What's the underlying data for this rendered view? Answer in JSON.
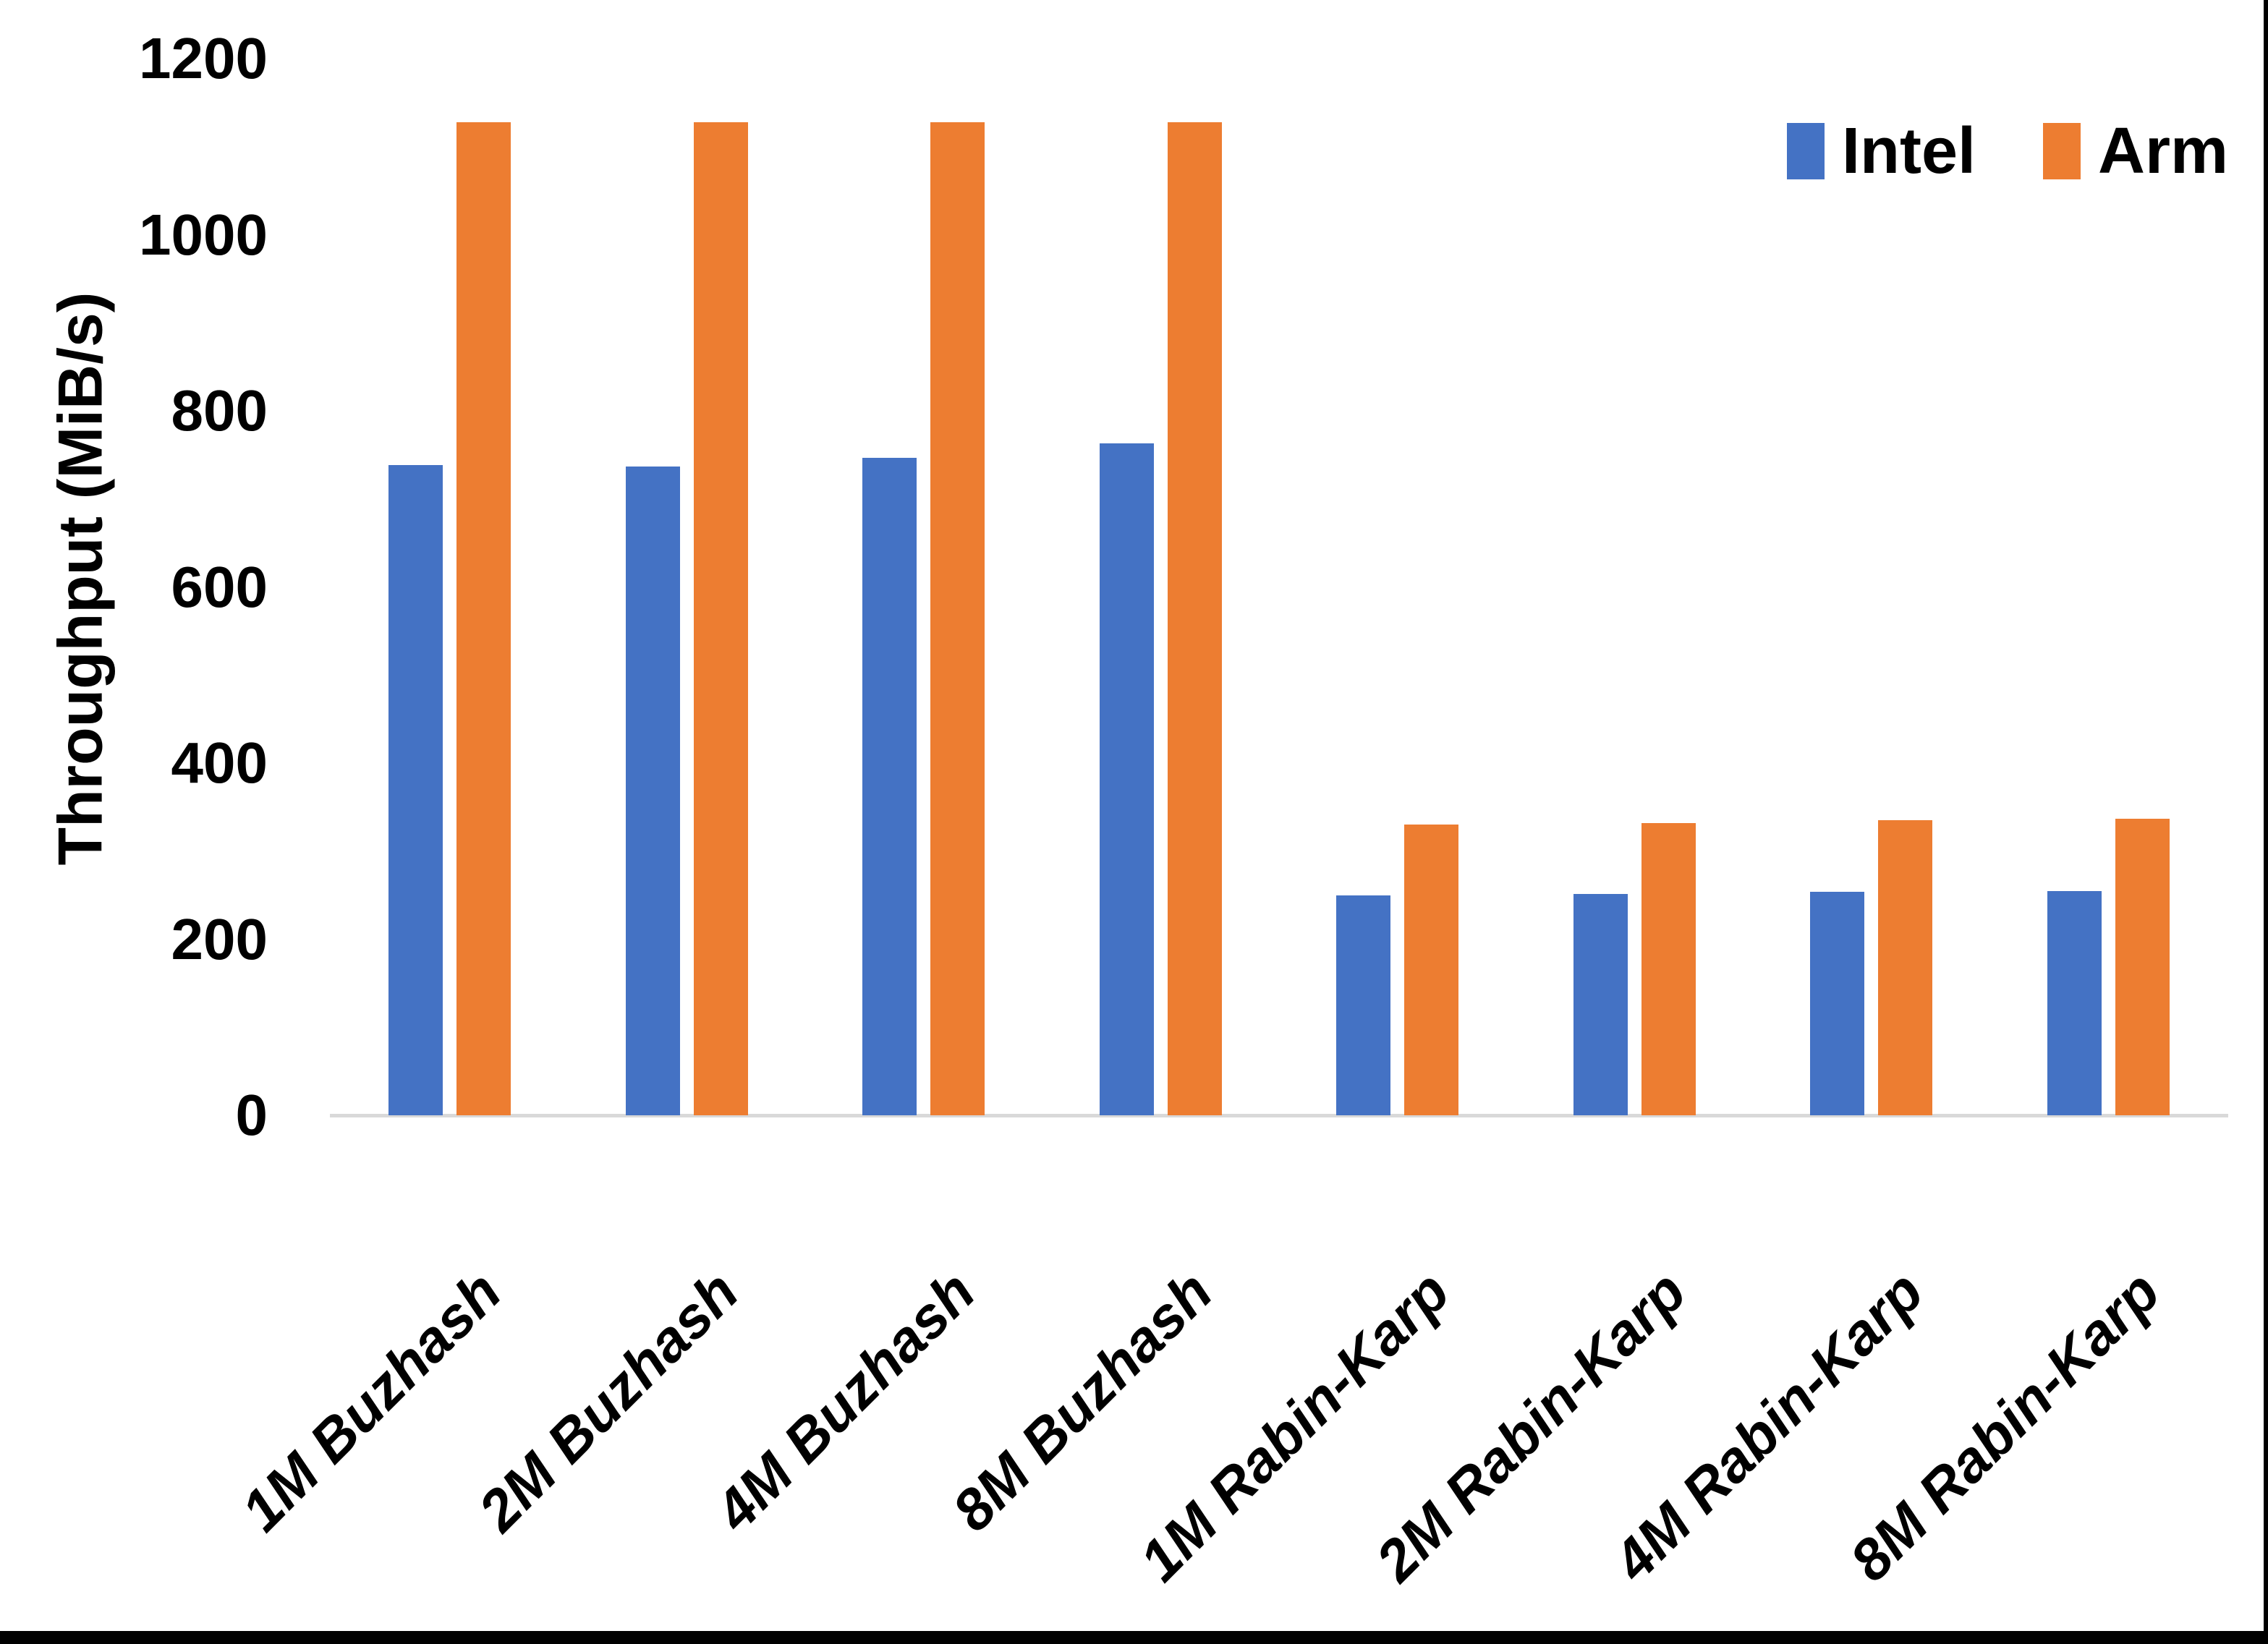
{
  "canvas": {
    "background": "#FFFFFF",
    "border_color": "#000000",
    "axis_line_color": "#D9D9D9",
    "text_color": "#000000"
  },
  "chart_data": {
    "type": "bar",
    "title": "",
    "xlabel": "",
    "ylabel": "Throughput (MiB/s)",
    "ylim": [
      0,
      1200
    ],
    "ytick_step": 200,
    "yticks": [
      0,
      200,
      400,
      600,
      800,
      1000,
      1200
    ],
    "grid": false,
    "legend_position": "top-right",
    "categories": [
      "1M Buzhash",
      "2M Buzhash",
      "4M Buzhash",
      "8M Buzhash",
      "1M Rabin-Karp",
      "2M Rabin-Karp",
      "4M Rabin-Karp",
      "8M Rabin-Karp"
    ],
    "series": [
      {
        "name": "Intel",
        "color": "#4472C4",
        "values": [
          738,
          737,
          747,
          763,
          250,
          251,
          254,
          255
        ]
      },
      {
        "name": "Arm",
        "color": "#ED7D31",
        "values": [
          1128,
          1128,
          1128,
          1128,
          330,
          332,
          335,
          337
        ]
      }
    ]
  },
  "legend": {
    "items": [
      {
        "label": "Intel",
        "color": "#4472C4"
      },
      {
        "label": "Arm",
        "color": "#ED7D31"
      }
    ]
  }
}
